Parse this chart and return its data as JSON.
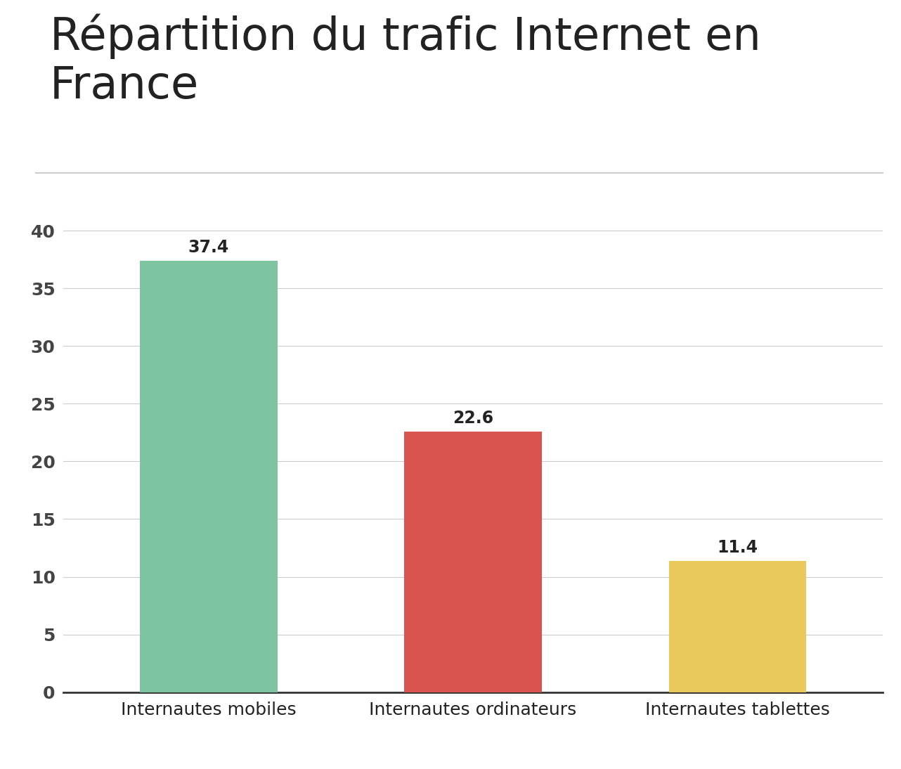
{
  "title": "Répartition du trafic Internet en\nFrance",
  "categories": [
    "Internautes mobiles",
    "Internautes ordinateurs",
    "Internautes tablettes"
  ],
  "values": [
    37.4,
    22.6,
    11.4
  ],
  "bar_colors": [
    "#7DC5A0",
    "#D9534F",
    "#E8C95A"
  ],
  "ylim": [
    0,
    42
  ],
  "yticks": [
    0,
    5,
    10,
    15,
    20,
    25,
    30,
    35,
    40
  ],
  "title_fontsize": 46,
  "label_fontsize": 18,
  "tick_fontsize": 18,
  "value_fontsize": 17,
  "background_color": "#ffffff",
  "grid_color": "#cccccc",
  "axis_color": "#333333",
  "text_color": "#222222",
  "tick_color": "#444444"
}
